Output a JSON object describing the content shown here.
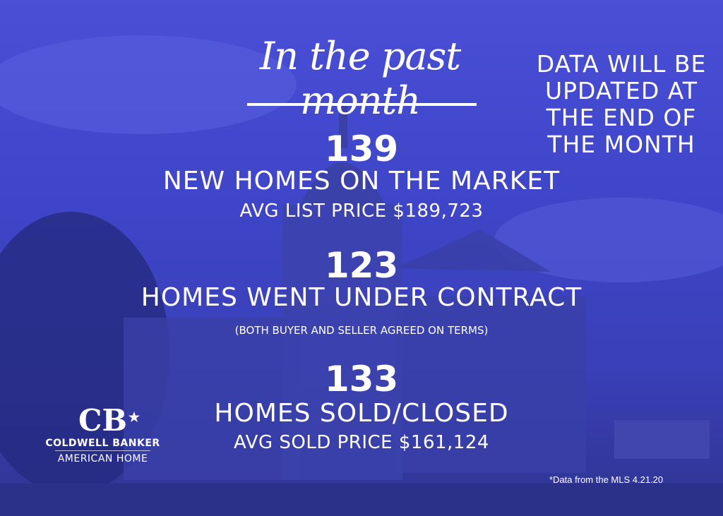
{
  "headline": "In the past month",
  "notice": [
    "DATA WILL BE",
    "UPDATED AT",
    "THE END OF",
    "THE MONTH"
  ],
  "stats": [
    {
      "number": "139",
      "label": "NEW HOMES ON THE MARKET",
      "sub": "AVG LIST PRICE $189,723"
    },
    {
      "number": "123",
      "label": "HOMES WENT UNDER CONTRACT",
      "sub": "(BOTH BUYER AND SELLER AGREED ON TERMS)"
    },
    {
      "number": "133",
      "label": "HOMES SOLD/CLOSED",
      "sub": "AVG SOLD PRICE $161,124"
    }
  ],
  "logo": {
    "mark": "CB",
    "line1": "COLDWELL BANKER",
    "line2": "AMERICAN HOME"
  },
  "footnote": "*Data from the MLS 4.21.20",
  "colors": {
    "overlay": "#3e45c8",
    "text": "#ffffff"
  }
}
